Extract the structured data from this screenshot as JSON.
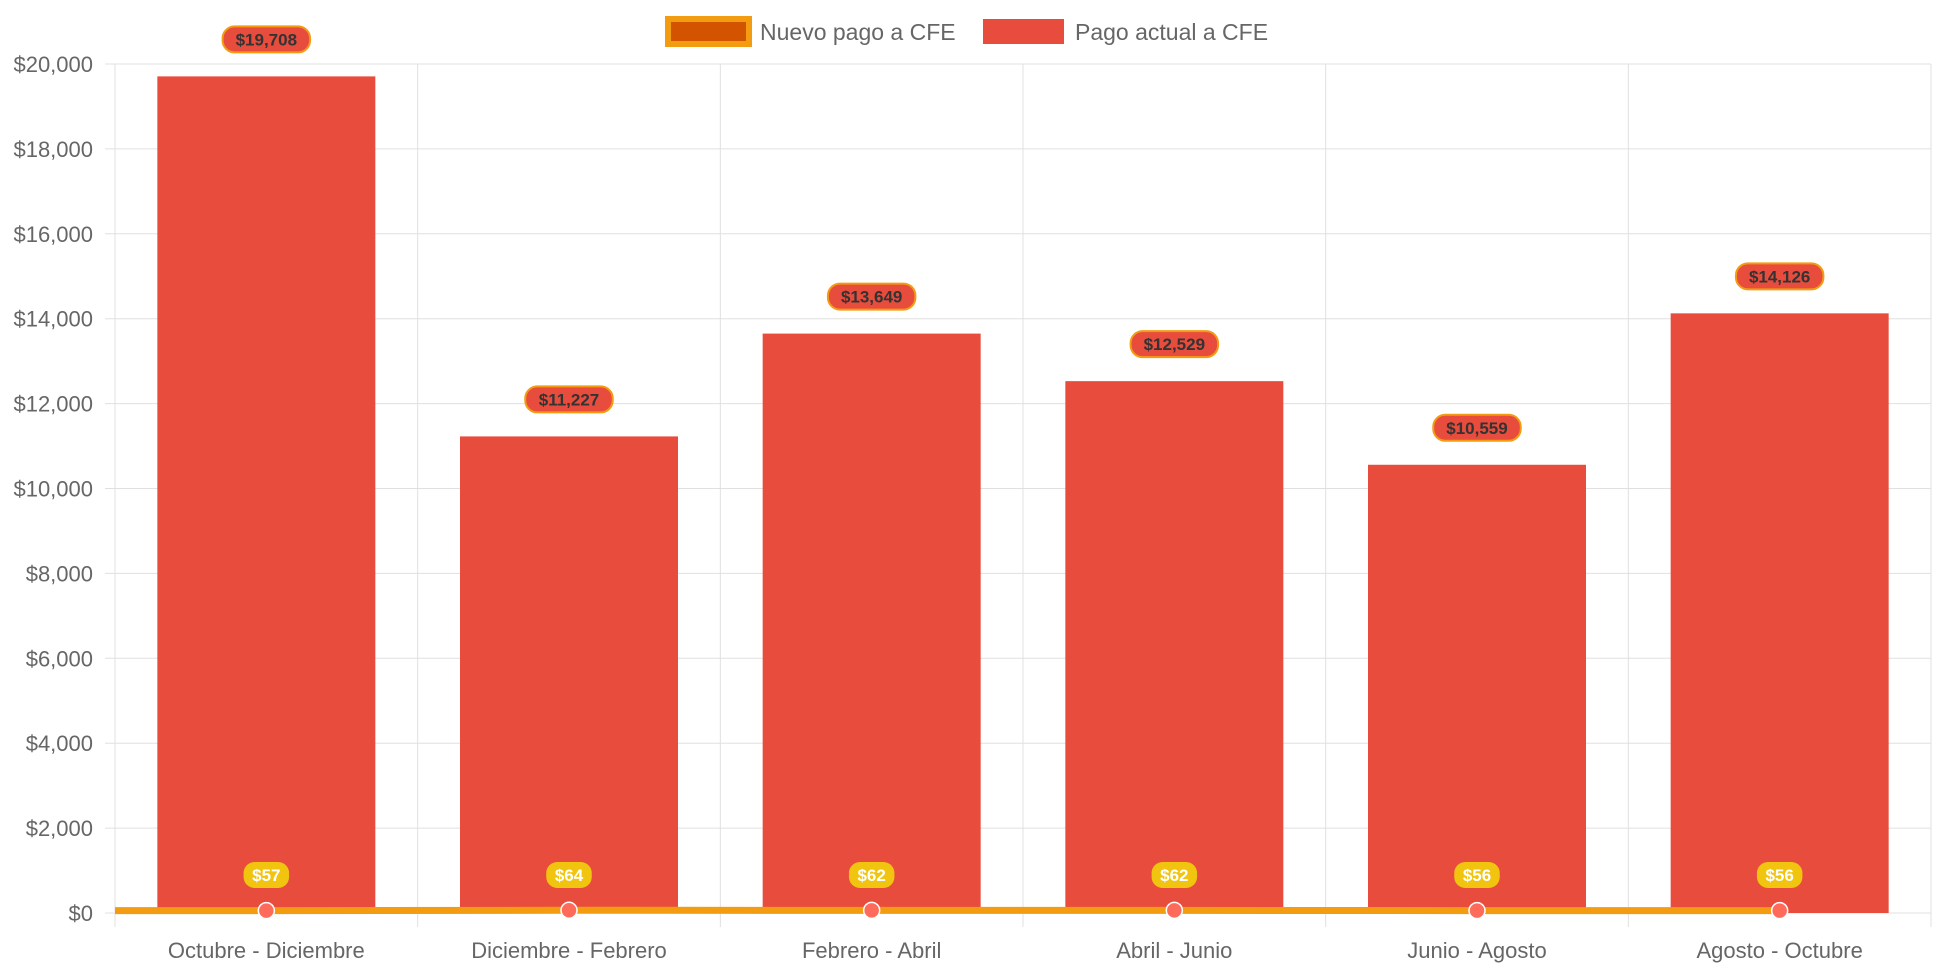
{
  "chart_data": {
    "type": "bar",
    "categories": [
      "Octubre - Diciembre",
      "Diciembre - Febrero",
      "Febrero - Abril",
      "Abril - Junio",
      "Junio - Agosto",
      "Agosto - Octubre"
    ],
    "series": [
      {
        "name": "Nuevo pago a CFE",
        "type": "line",
        "values": [
          57,
          64,
          62,
          62,
          56,
          56
        ],
        "labels": [
          "$57",
          "$64",
          "$62",
          "$62",
          "$56",
          "$56"
        ],
        "color": "#f39c12",
        "fill": "#d35400",
        "point_color": "#ff6b5b",
        "label_bg": "#f1c40f"
      },
      {
        "name": "Pago actual a CFE",
        "type": "bar",
        "values": [
          19708,
          11227,
          13649,
          12529,
          10559,
          14126
        ],
        "labels": [
          "$19,708",
          "$11,227",
          "$13,649",
          "$12,529",
          "$10,559",
          "$14,126"
        ],
        "color": "#e74c3c",
        "label_border": "#f39c12"
      }
    ],
    "yticks": [
      "$0",
      "$2,000",
      "$4,000",
      "$6,000",
      "$8,000",
      "$10,000",
      "$12,000",
      "$14,000",
      "$16,000",
      "$18,000",
      "$20,000"
    ],
    "ylim": [
      0,
      20000
    ],
    "ystep": 2000,
    "grid": true,
    "legend": "top-center",
    "title": "",
    "xlabel": "",
    "ylabel": ""
  }
}
